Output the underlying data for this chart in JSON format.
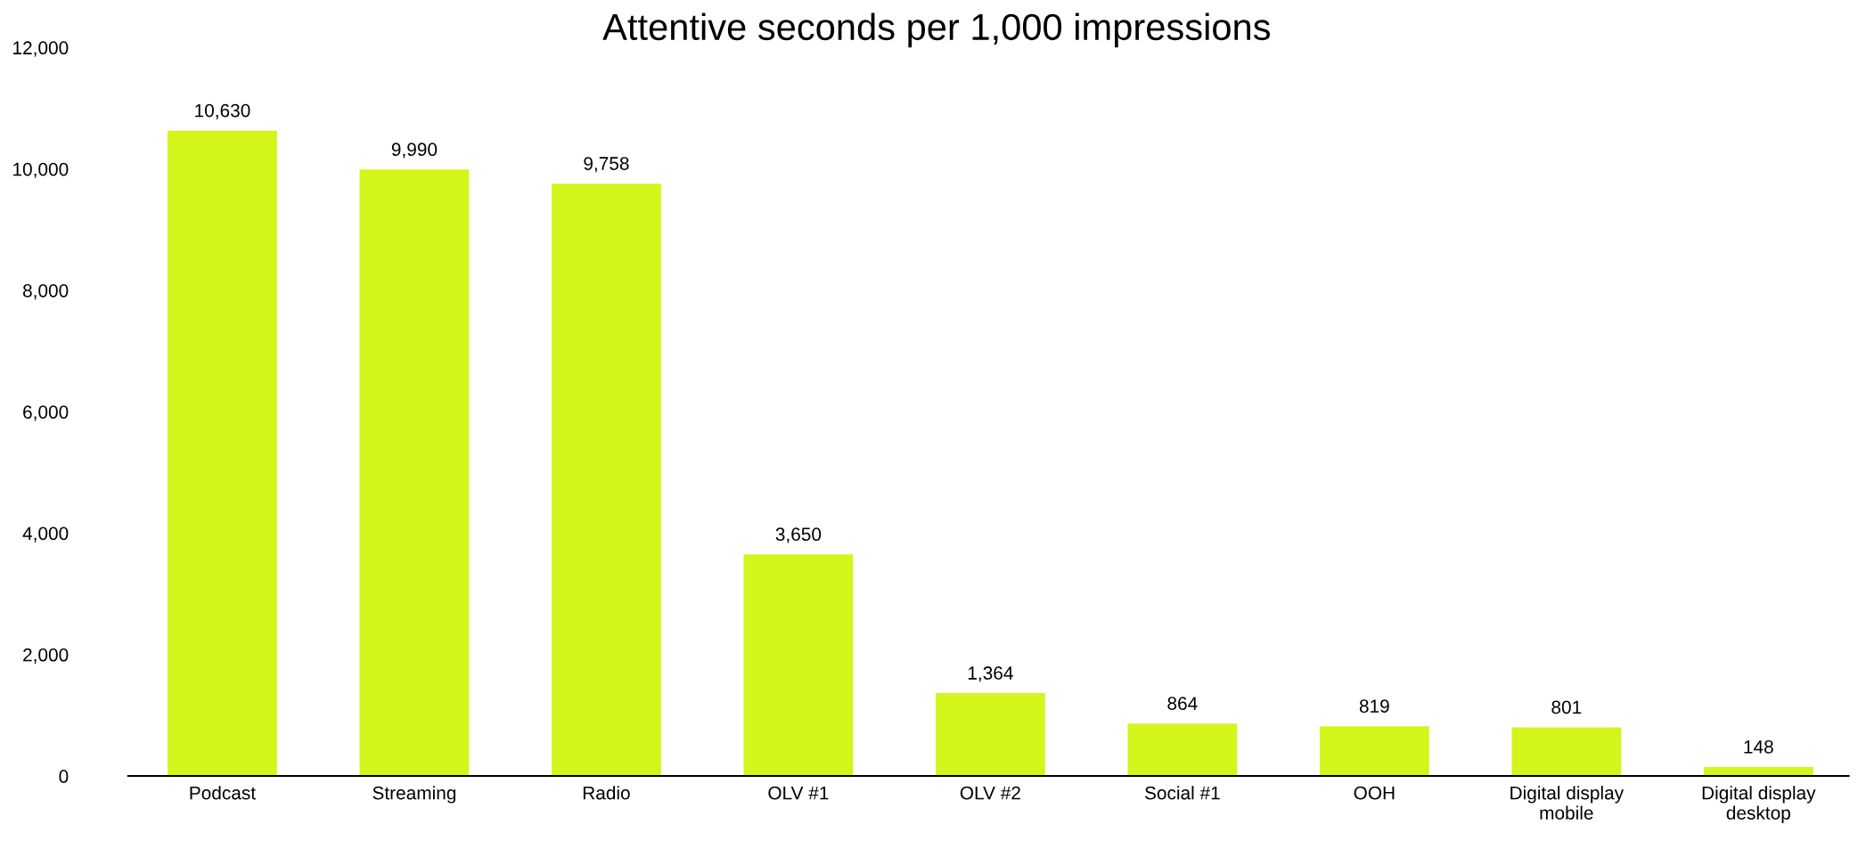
{
  "chart_data": {
    "type": "bar",
    "title": "Attentive seconds per 1,000 impressions",
    "categories": [
      "Podcast",
      "Streaming",
      "Radio",
      "OLV #1",
      "OLV #2",
      "Social #1",
      "OOH",
      "Digital display\nmobile",
      "Digital display\ndesktop"
    ],
    "values": [
      10630,
      9990,
      9758,
      3650,
      1364,
      864,
      819,
      801,
      148
    ],
    "value_labels": [
      "10,630",
      "9,990",
      "9,758",
      "3,650",
      "1,364",
      "864",
      "819",
      "801",
      "148"
    ],
    "color": "#d4f51a",
    "ylim": [
      0,
      12000
    ],
    "yticks": [
      0,
      {
        "value": 2000,
        "label": "2,000"
      },
      {
        "value": 4000,
        "label": "4,000"
      },
      {
        "value": 6000,
        "label": "6,000"
      },
      {
        "value": 8000,
        "label": "8,000"
      },
      {
        "value": 10000,
        "label": "10,000"
      },
      {
        "value": 12000,
        "label": "12,000"
      }
    ],
    "grid": false,
    "legend": false
  }
}
